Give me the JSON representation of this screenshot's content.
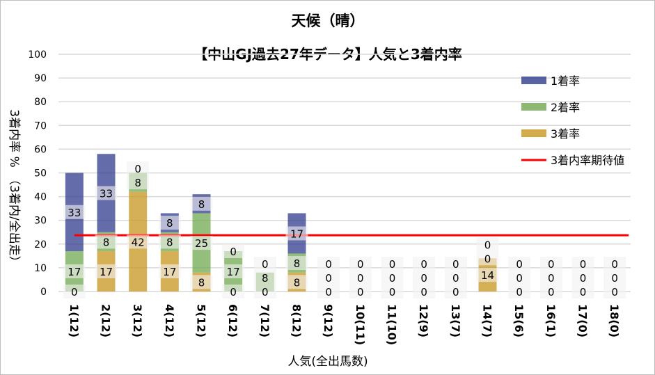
{
  "chart_data": {
    "type": "bar",
    "stacked": true,
    "title": "天候（晴）",
    "subtitle": "【中山GJ過去27年データ】人気と3着内率",
    "xlabel": "人気(全出馬数)",
    "ylabel": "3着内率 %　（3着内/全出走）",
    "ylim": [
      0,
      100
    ],
    "yticks": [
      0,
      10,
      20,
      30,
      40,
      50,
      60,
      70,
      80,
      90,
      100
    ],
    "grid": true,
    "legend_position": "right",
    "categories": [
      "1(12)",
      "2(12)",
      "3(12)",
      "4(12)",
      "5(12)",
      "6(12)",
      "7(12)",
      "8(12)",
      "9(12)",
      "10(11)",
      "11(10)",
      "12(9)",
      "13(7)",
      "14(7)",
      "15(6)",
      "16(1)",
      "17(0)",
      "18(0)"
    ],
    "series": [
      {
        "name": "3着率",
        "color": "#c8961e",
        "values": [
          0,
          17,
          42,
          17,
          8,
          0,
          0,
          8,
          0,
          0,
          0,
          0,
          0,
          14,
          0,
          0,
          0,
          0
        ]
      },
      {
        "name": "2着率",
        "color": "#70a850",
        "values": [
          17,
          8,
          8,
          8,
          25,
          17,
          8,
          8,
          0,
          0,
          0,
          0,
          0,
          0,
          0,
          0,
          0,
          0
        ]
      },
      {
        "name": "1着率",
        "color": "#303c8c",
        "values": [
          33,
          33,
          0,
          8,
          8,
          0,
          0,
          17,
          0,
          0,
          0,
          0,
          0,
          0,
          0,
          0,
          0,
          0
        ]
      }
    ],
    "reference_line": {
      "name": "3着内率期待値",
      "color": "#ff0000",
      "value": 23.7
    }
  }
}
